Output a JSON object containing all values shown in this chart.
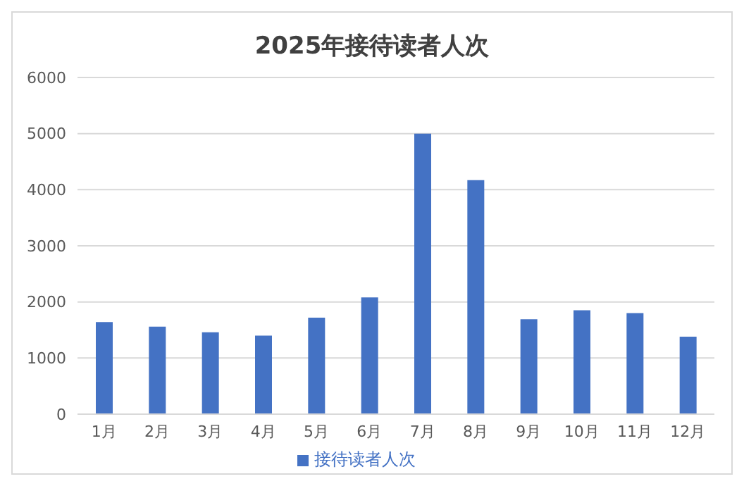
{
  "chart_data": {
    "type": "bar",
    "title": "2025年接待读者人次",
    "categories": [
      "1月",
      "2月",
      "3月",
      "4月",
      "5月",
      "6月",
      "7月",
      "8月",
      "9月",
      "10月",
      "11月",
      "12月"
    ],
    "series": [
      {
        "name": "接待读者人次",
        "color": "#4472c4",
        "values": [
          1640,
          1560,
          1460,
          1400,
          1720,
          2080,
          5000,
          4170,
          1690,
          1850,
          1800,
          1380
        ]
      }
    ],
    "ylim": [
      0,
      6000
    ],
    "yticks": [
      0,
      1000,
      2000,
      3000,
      4000,
      5000,
      6000
    ],
    "grid": "y",
    "legend": "bottom"
  }
}
